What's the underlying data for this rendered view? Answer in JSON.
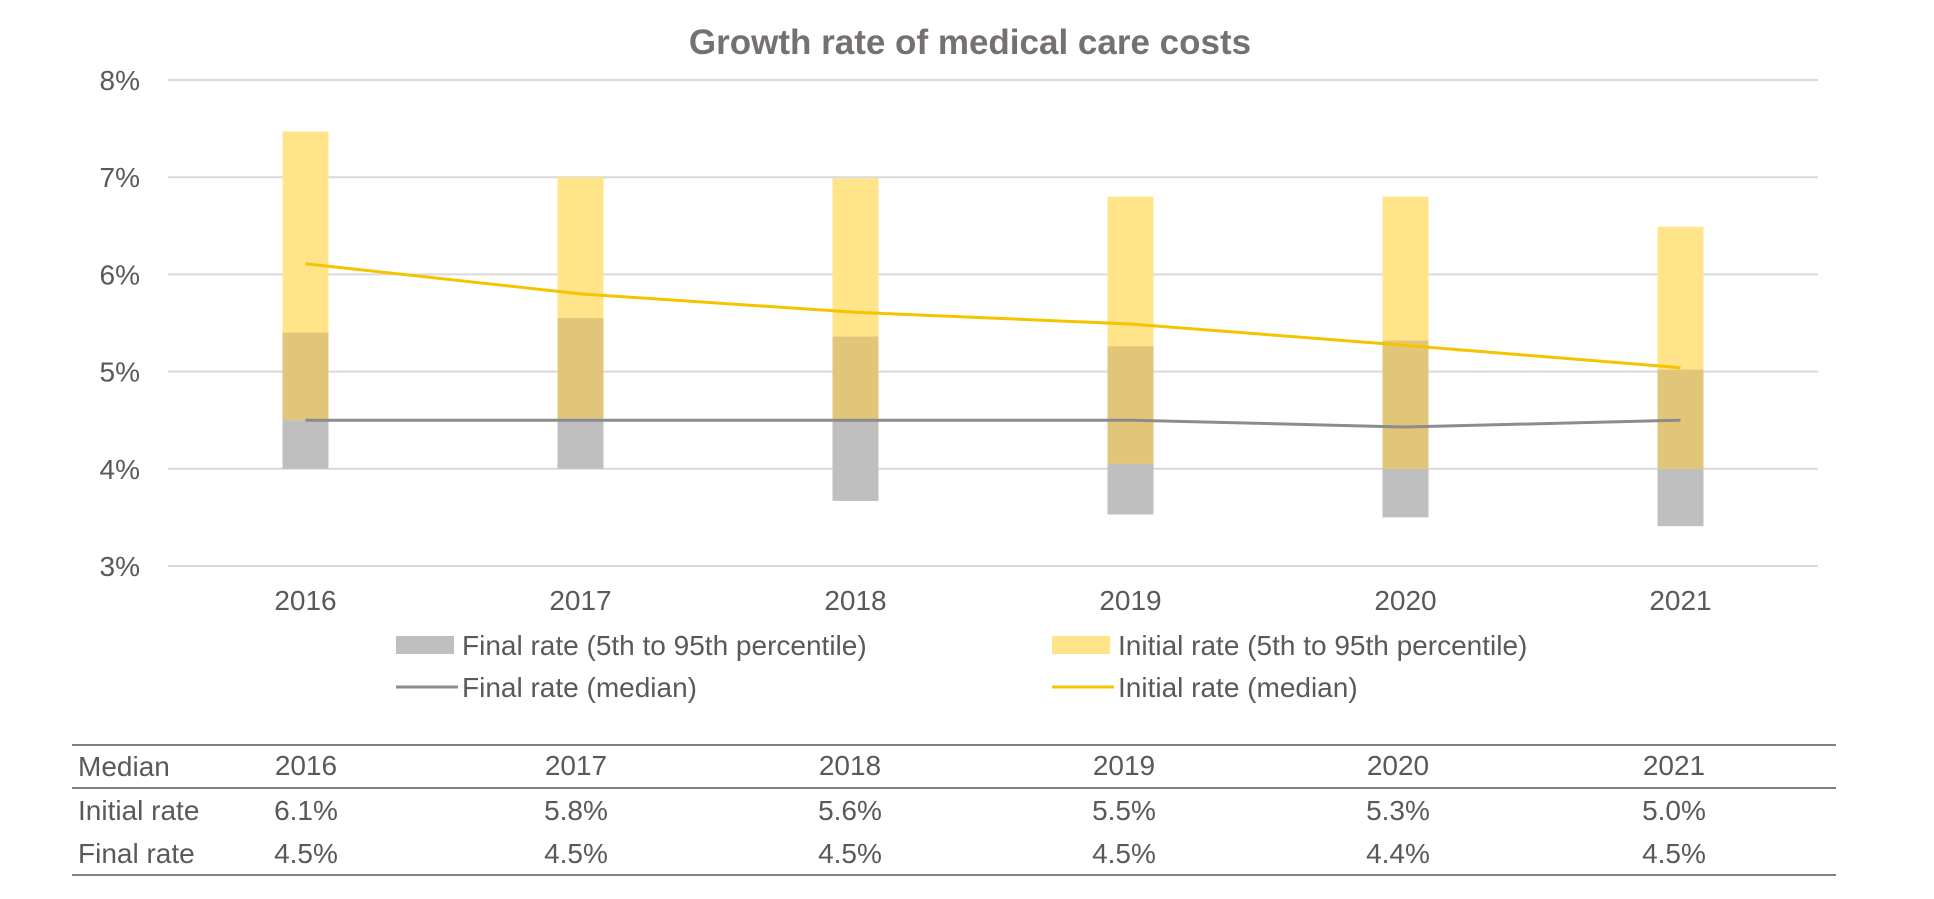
{
  "chart_data": {
    "type": "bar",
    "title": "Growth rate of medical care costs",
    "categories": [
      "2016",
      "2017",
      "2018",
      "2019",
      "2020",
      "2021"
    ],
    "ylim": [
      3,
      8
    ],
    "y_ticks": [
      "3%",
      "4%",
      "5%",
      "6%",
      "7%",
      "8%"
    ],
    "y_tick_values": [
      3,
      4,
      5,
      6,
      7,
      8
    ],
    "grid": true,
    "legend_position": "bottom",
    "series": [
      {
        "name": "Final rate (5th to 95th percentile)",
        "kind": "range-bar",
        "color": "#bfbfbf",
        "low": [
          4.0,
          4.0,
          3.67,
          3.53,
          3.5,
          3.41
        ],
        "high": [
          5.4,
          5.55,
          5.36,
          5.26,
          5.32,
          5.02
        ]
      },
      {
        "name": "Initial rate (5th to 95th percentile)",
        "kind": "range-bar",
        "color": "#ffe48a",
        "low": [
          4.5,
          4.52,
          4.5,
          4.05,
          4.0,
          4.0
        ],
        "high": [
          7.47,
          7.0,
          6.99,
          6.8,
          6.8,
          6.49
        ]
      },
      {
        "name": "Final rate (median)",
        "kind": "line",
        "color": "#8c8c8c",
        "values": [
          4.5,
          4.5,
          4.5,
          4.5,
          4.43,
          4.5
        ]
      },
      {
        "name": "Initial rate (median)",
        "kind": "line",
        "color": "#f5c400",
        "values": [
          6.11,
          5.8,
          5.61,
          5.49,
          5.27,
          5.04
        ]
      }
    ],
    "overlap_color": "#e1c67a"
  },
  "table": {
    "header_label": "Median",
    "years": [
      "2016",
      "2017",
      "2018",
      "2019",
      "2020",
      "2021"
    ],
    "rows": [
      {
        "label": "Initial rate",
        "values": [
          "6.1%",
          "5.8%",
          "5.6%",
          "5.5%",
          "5.3%",
          "5.0%"
        ]
      },
      {
        "label": "Final rate",
        "values": [
          "4.5%",
          "4.5%",
          "4.5%",
          "4.5%",
          "4.4%",
          "4.5%"
        ]
      }
    ]
  }
}
